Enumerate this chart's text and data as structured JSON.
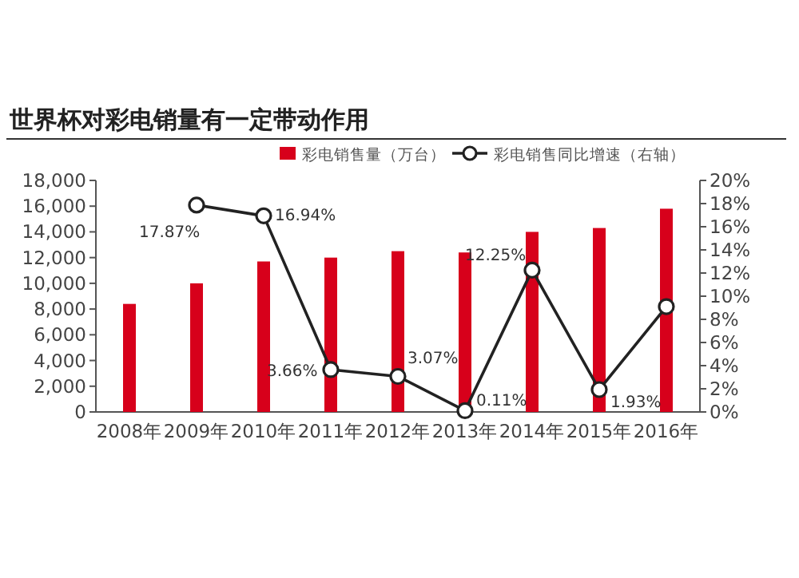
{
  "chart_data": {
    "type": "bar",
    "title": "世界杯对彩电销量有一定带动作用",
    "categories": [
      "2008年",
      "2009年",
      "2010年",
      "2011年",
      "2012年",
      "2013年",
      "2014年",
      "2015年",
      "2016年"
    ],
    "series": [
      {
        "name": "彩电销售量（万台）",
        "color": "#d7001b",
        "values": [
          8400,
          10000,
          11700,
          12000,
          12500,
          12400,
          14000,
          14300,
          15800
        ]
      },
      {
        "name": "彩电销售同比增速（右轴）",
        "type": "line",
        "axis": "y2",
        "color": "#222222",
        "values": [
          null,
          17.87,
          16.94,
          3.66,
          3.07,
          0.11,
          12.25,
          1.93,
          9.1
        ],
        "value_labels": [
          null,
          "17.87%",
          "16.94%",
          "3.66%",
          "3.07%",
          "0.11%",
          "12.25%",
          "1.93%",
          null
        ]
      }
    ],
    "marker": "circle",
    "legend": "top",
    "grid": false,
    "ylim": [
      0,
      18000
    ],
    "yticks": [
      {
        "value": 0,
        "label": "0"
      },
      {
        "value": 2000,
        "label": "2,000"
      },
      {
        "value": 4000,
        "label": "4,000"
      },
      {
        "value": 6000,
        "label": "6,000"
      },
      {
        "value": 8000,
        "label": "8,000"
      },
      {
        "value": 10000,
        "label": "10,000"
      },
      {
        "value": 12000,
        "label": "12,000"
      },
      {
        "value": 14000,
        "label": "14,000"
      },
      {
        "value": 16000,
        "label": "16,000"
      },
      {
        "value": 18000,
        "label": "18,000"
      }
    ],
    "y2lim": [
      0,
      20
    ],
    "y2ticks": [
      {
        "value": 0,
        "label": "0%"
      },
      {
        "value": 2,
        "label": "2%"
      },
      {
        "value": 4,
        "label": "4%"
      },
      {
        "value": 6,
        "label": "6%"
      },
      {
        "value": 8,
        "label": "8%"
      },
      {
        "value": 10,
        "label": "10%"
      },
      {
        "value": 12,
        "label": "12%"
      },
      {
        "value": 14,
        "label": "14%"
      },
      {
        "value": 16,
        "label": "16%"
      },
      {
        "value": 18,
        "label": "18%"
      },
      {
        "value": 20,
        "label": "20%"
      }
    ]
  }
}
